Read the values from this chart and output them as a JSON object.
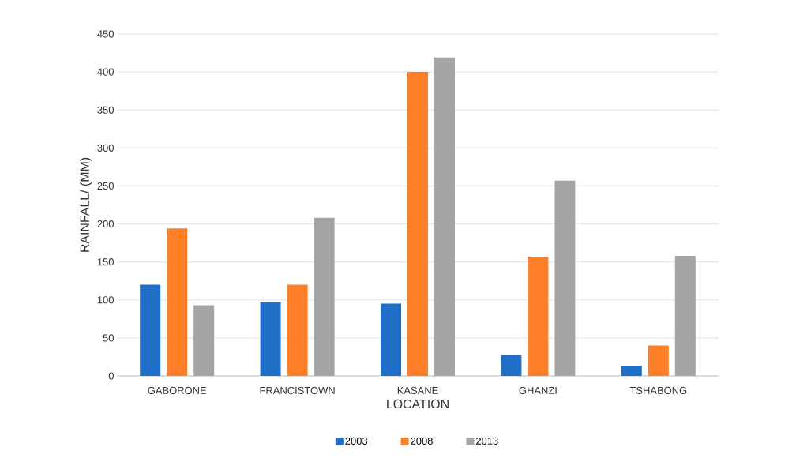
{
  "chart_data": {
    "type": "bar",
    "xlabel": "LOCATION",
    "ylabel": "RAINFALL/ (MM)",
    "categories": [
      "GABORONE",
      "FRANCISTOWN",
      "KASANE",
      "GHANZI",
      "TSHABONG"
    ],
    "series": [
      {
        "name": "2003",
        "color": "#1f6fc8",
        "values": [
          120,
          97,
          95,
          27,
          13
        ]
      },
      {
        "name": "2008",
        "color": "#fd7f27",
        "values": [
          194,
          120,
          400,
          157,
          40
        ]
      },
      {
        "name": "2013",
        "color": "#a5a5a5",
        "values": [
          93,
          208,
          419,
          257,
          158
        ]
      }
    ],
    "ylim": [
      0,
      450
    ],
    "yticks": [
      0,
      50,
      100,
      150,
      200,
      250,
      300,
      350,
      400,
      450
    ],
    "grid": "y",
    "legend": "bottom"
  }
}
